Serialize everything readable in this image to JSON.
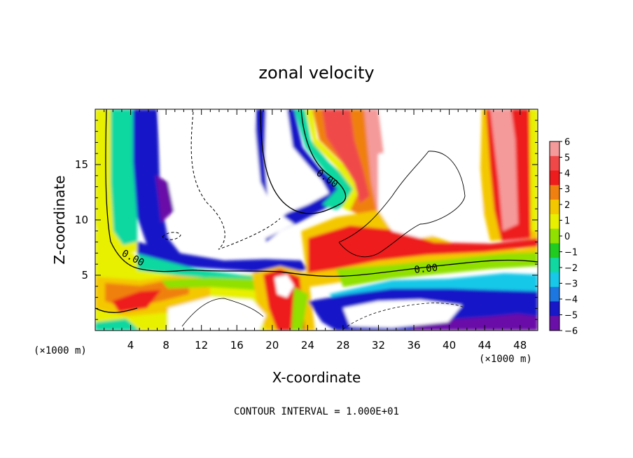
{
  "chart_data": {
    "type": "heatmap",
    "title": "zonal velocity",
    "xlabel": "X-coordinate",
    "ylabel": "Z-coordinate",
    "x_unit": "(×1000 m)",
    "z_unit": "(×1000 m)",
    "xlim": [
      0,
      50
    ],
    "zlim": [
      0,
      20
    ],
    "x_ticks": [
      4,
      8,
      12,
      16,
      20,
      24,
      28,
      32,
      36,
      40,
      44,
      48
    ],
    "z_ticks": [
      5,
      10,
      15
    ],
    "colorbar": {
      "levels": [
        6,
        5,
        4,
        3,
        2,
        1,
        0,
        -1,
        -2,
        -3,
        -4,
        -5,
        -6
      ],
      "labels": [
        "6",
        "5",
        "4",
        "3",
        "2",
        "1",
        "0",
        "−1",
        "−2",
        "−3",
        "−4",
        "−5",
        "−6"
      ],
      "colors": [
        "#f59a9a",
        "#f04848",
        "#ee1c1c",
        "#f08010",
        "#f4c800",
        "#e8f000",
        "#90e000",
        "#20cc20",
        "#10d8a0",
        "#18c8e8",
        "#1c78e0",
        "#1818c8",
        "#6a10a8"
      ]
    },
    "contour_labels": [
      {
        "text": "0.00",
        "x": 4.1,
        "z": 6.3,
        "angle": 28
      },
      {
        "text": "0.00",
        "x": 26.0,
        "z": 13.5,
        "angle": 35
      },
      {
        "text": "0.00",
        "x": 37.4,
        "z": 5.3,
        "angle": -6
      }
    ],
    "footer": "CONTOUR INTERVAL = 1.000E+01"
  }
}
